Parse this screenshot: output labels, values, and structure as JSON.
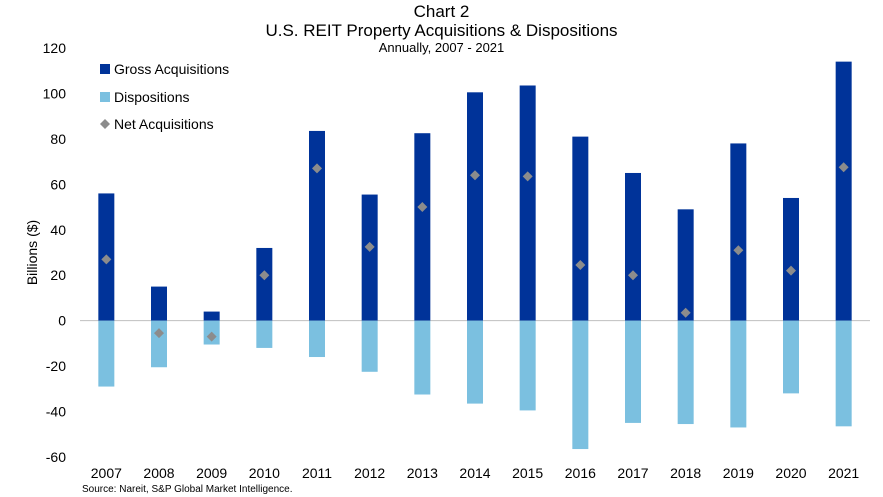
{
  "chart_data": {
    "type": "bar",
    "title": "Chart 2",
    "subtitle": "U.S. REIT Property Acquisitions & Dispositions",
    "subtitle2": "Annually, 2007 - 2021",
    "ylabel": "Billions ($)",
    "xlabel": "",
    "ylim": [
      -60,
      120
    ],
    "yticks": [
      -60,
      -40,
      -20,
      0,
      20,
      40,
      60,
      80,
      100,
      120
    ],
    "grid": false,
    "legend_position": "top-left",
    "categories": [
      "2007",
      "2008",
      "2009",
      "2010",
      "2011",
      "2012",
      "2013",
      "2014",
      "2015",
      "2016",
      "2017",
      "2018",
      "2019",
      "2020",
      "2021"
    ],
    "series": [
      {
        "name": "Gross Acquisitions",
        "type": "bar",
        "color": "#003399",
        "values": [
          56,
          15,
          4,
          32,
          83.5,
          55.5,
          82.5,
          100.5,
          103.5,
          81,
          65,
          49,
          78,
          54,
          114
        ]
      },
      {
        "name": "Dispositions",
        "type": "bar",
        "color": "#7bc0e0",
        "values": [
          -29,
          -20.5,
          -10.5,
          -12,
          -16,
          -22.5,
          -32.5,
          -36.5,
          -39.5,
          -56.5,
          -45,
          -45.5,
          -47,
          -32,
          -46.5
        ]
      },
      {
        "name": "Net Acquisitions",
        "type": "marker",
        "color": "#8c8c8c",
        "values": [
          27,
          -5.5,
          -7,
          20,
          67,
          32.5,
          50,
          64,
          63.5,
          24.5,
          20,
          3.5,
          31,
          22,
          67.5
        ]
      }
    ],
    "source": "Source: Nareit, S&P Global Market Intelligence."
  }
}
